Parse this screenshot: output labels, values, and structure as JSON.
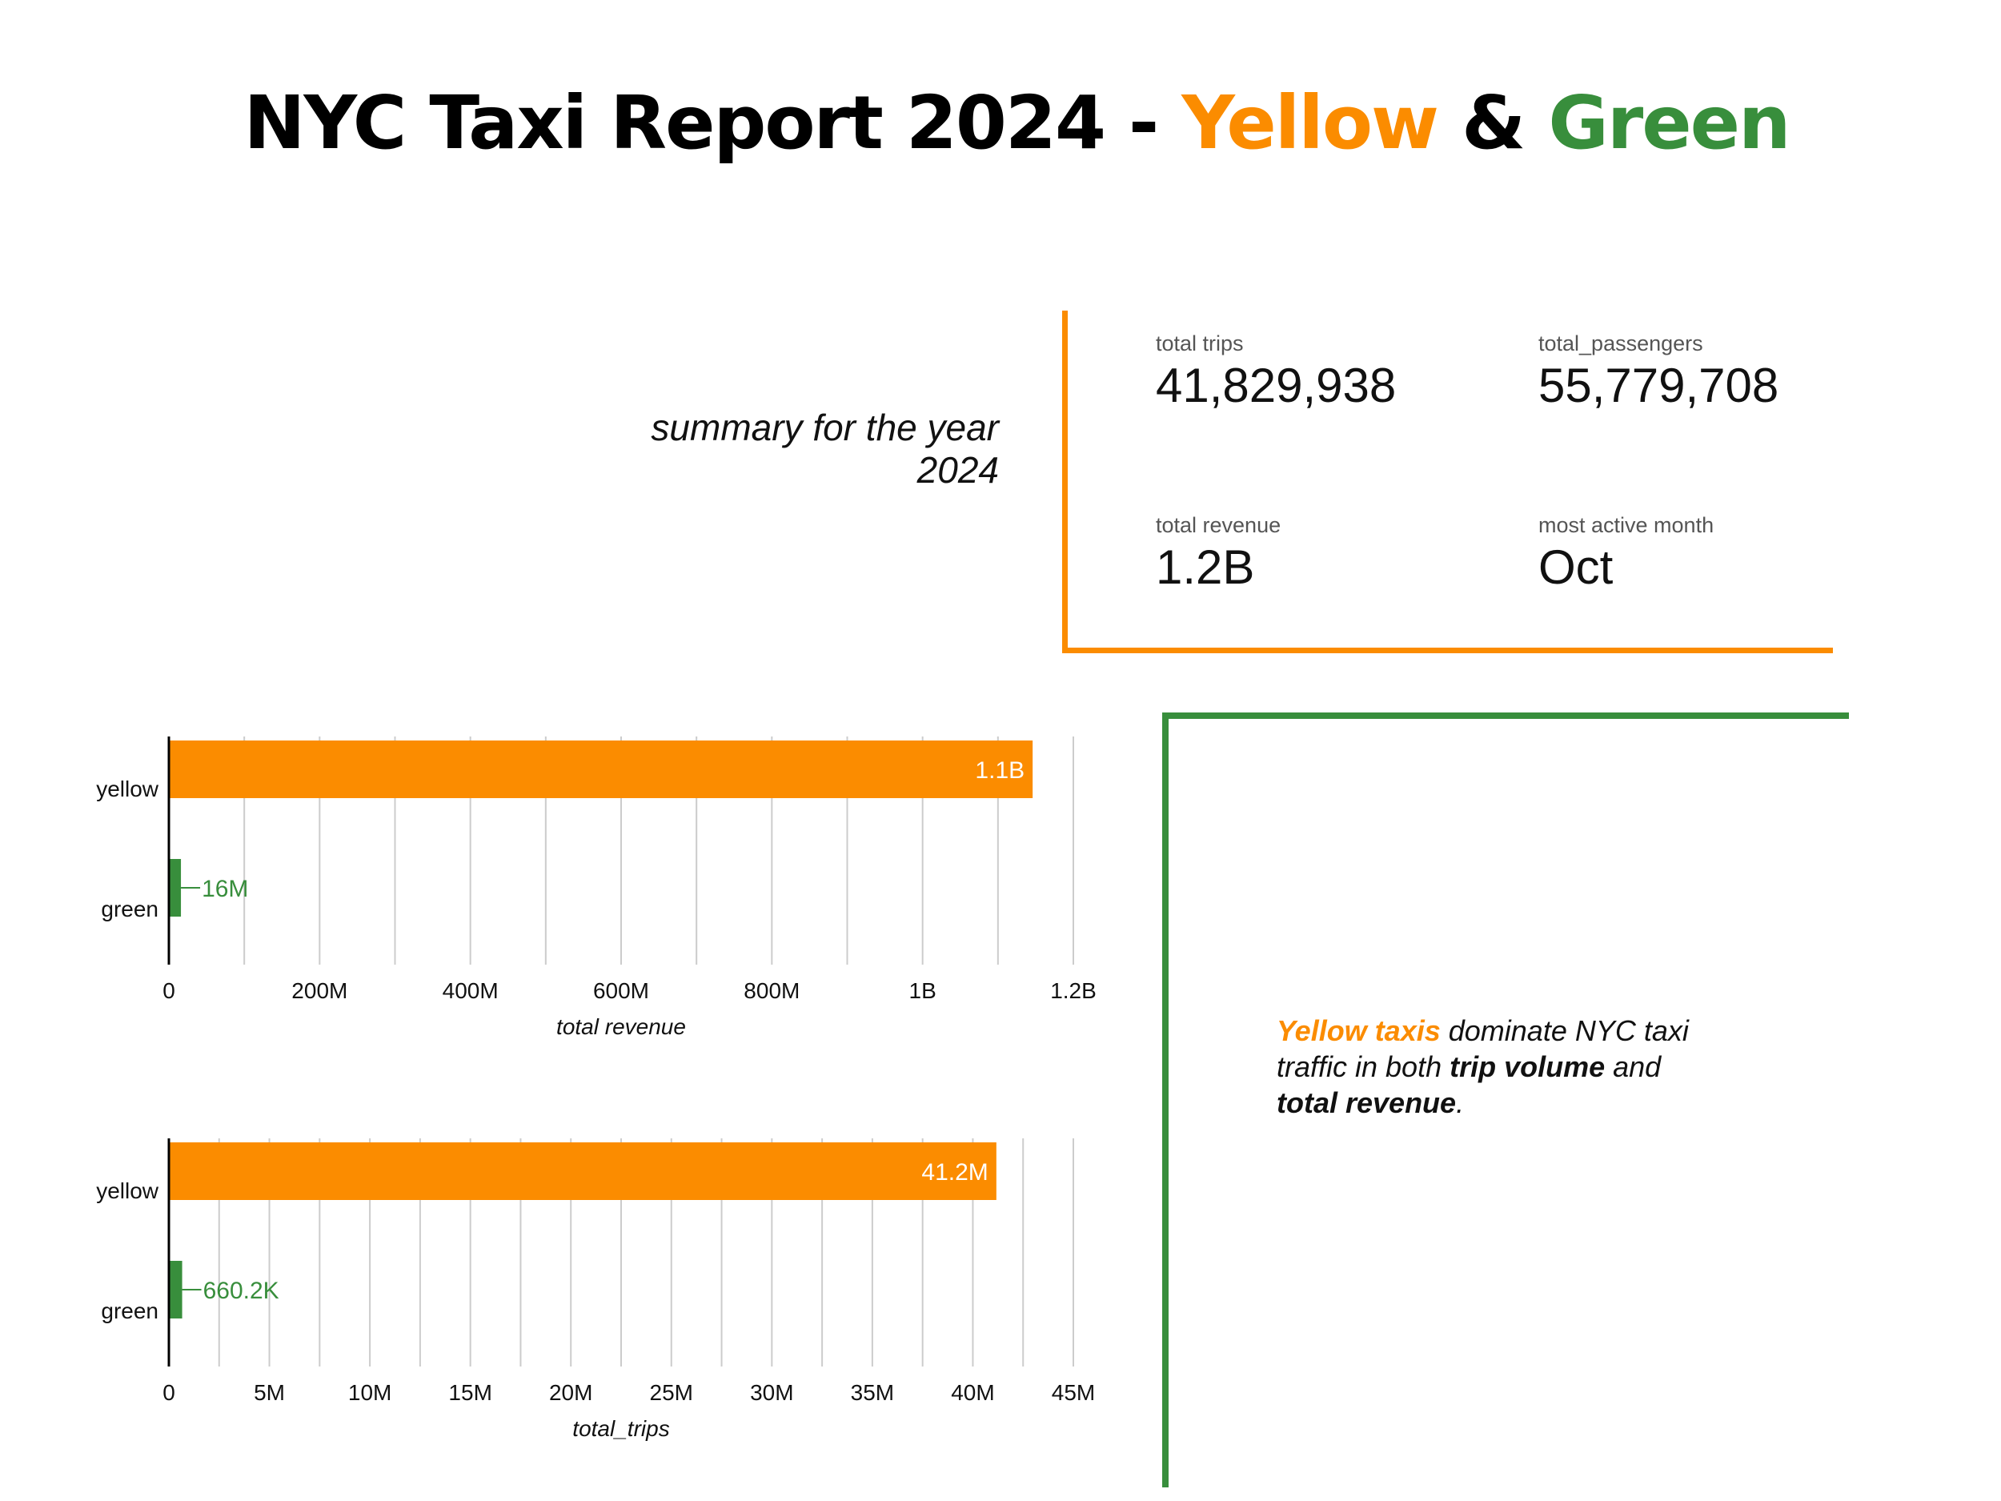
{
  "title": {
    "part1": "NYC Taxi Report 2024 - ",
    "yellow_word": "Yellow",
    "amp": " & ",
    "green_word": "Green"
  },
  "subtitle": {
    "line1": "summary for the year",
    "line2": "2024"
  },
  "kpis": [
    {
      "label": "total trips",
      "value": "41,829,938"
    },
    {
      "label": "total_passengers",
      "value": "55,779,708"
    },
    {
      "label": "total revenue",
      "value": "1.2B"
    },
    {
      "label": "most active month",
      "value": "Oct"
    }
  ],
  "insight": {
    "highlight": "Yellow taxis",
    "text1": " dominate NYC taxi traffic in both ",
    "bold1": "trip volume",
    "text2": " and ",
    "bold2": "total revenue",
    "text3": "."
  },
  "colors": {
    "yellow": "#fb8c00",
    "green": "#388e3c",
    "grid": "#cccccc"
  },
  "chart_data": [
    {
      "type": "bar",
      "orientation": "horizontal",
      "categories": [
        "yellow",
        "green"
      ],
      "values": [
        1146000000,
        16000000
      ],
      "data_labels": [
        "1.1B",
        "16M"
      ],
      "xlabel": "total revenue",
      "xlim": [
        0,
        1200000000
      ],
      "ticks": [
        0,
        200000000,
        400000000,
        600000000,
        800000000,
        1000000000,
        1200000000
      ],
      "tick_labels": [
        "0",
        "200M",
        "400M",
        "600M",
        "800M",
        "1B",
        "1.2B"
      ],
      "grid": true,
      "grid_step": 100000000
    },
    {
      "type": "bar",
      "orientation": "horizontal",
      "categories": [
        "yellow",
        "green"
      ],
      "values": [
        41170000,
        660200
      ],
      "data_labels": [
        "41.2M",
        "660.2K"
      ],
      "xlabel": "total_trips",
      "xlim": [
        0,
        45000000
      ],
      "ticks": [
        0,
        5000000,
        10000000,
        15000000,
        20000000,
        25000000,
        30000000,
        35000000,
        40000000,
        45000000
      ],
      "tick_labels": [
        "0",
        "5M",
        "10M",
        "15M",
        "20M",
        "25M",
        "30M",
        "35M",
        "40M",
        "45M"
      ],
      "grid": true,
      "grid_step": 2500000
    }
  ]
}
